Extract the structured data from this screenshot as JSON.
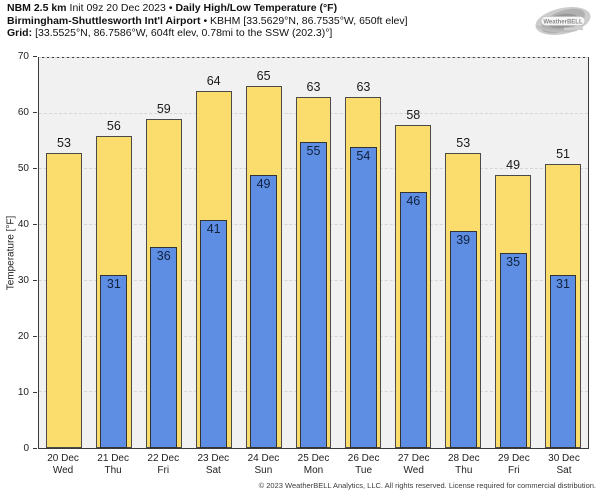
{
  "header": {
    "model": "NBM 2.5 km",
    "init": "Init 09z 20 Dec 2023",
    "separator": "•",
    "product": "Daily High/Low Temperature (°F)",
    "station": "Birmingham-Shuttlesworth Int'l Airport",
    "station_info": "• KBHM [33.5629°N, 86.7535°W, 650ft elev]",
    "grid_label": "Grid:",
    "grid_info": "[33.5525°N, 86.7586°W, 604ft elev, 0.78mi to the SSW (202.3)°]"
  },
  "logo": {
    "text": "WeatherBELL"
  },
  "chart_data": {
    "type": "bar",
    "title": "Daily High/Low Temperature (°F)",
    "categories": [
      {
        "date": "20 Dec",
        "day": "Wed"
      },
      {
        "date": "21 Dec",
        "day": "Thu"
      },
      {
        "date": "22 Dec",
        "day": "Fri"
      },
      {
        "date": "23 Dec",
        "day": "Sat"
      },
      {
        "date": "24 Dec",
        "day": "Sun"
      },
      {
        "date": "25 Dec",
        "day": "Mon"
      },
      {
        "date": "26 Dec",
        "day": "Tue"
      },
      {
        "date": "27 Dec",
        "day": "Wed"
      },
      {
        "date": "28 Dec",
        "day": "Thu"
      },
      {
        "date": "29 Dec",
        "day": "Fri"
      },
      {
        "date": "30 Dec",
        "day": "Sat"
      }
    ],
    "series": [
      {
        "name": "High",
        "color": "#fbdd6d",
        "values": [
          53,
          56,
          59,
          64,
          65,
          63,
          63,
          58,
          53,
          49,
          51
        ]
      },
      {
        "name": "Low",
        "color": "#5e8ee3",
        "values": [
          null,
          31,
          36,
          41,
          49,
          55,
          54,
          46,
          39,
          35,
          31
        ]
      }
    ],
    "ylabel": "Temperature [°F]",
    "xlabel": "",
    "ylim": [
      0,
      70
    ],
    "yticks": [
      0,
      10,
      20,
      30,
      40,
      50,
      60,
      70
    ],
    "grid": "dashed-horizontal",
    "legend": "none"
  },
  "footer": {
    "copyright": "© 2023 WeatherBELL Analytics, LLC. All rights reserved. License required for commercial distribution."
  }
}
